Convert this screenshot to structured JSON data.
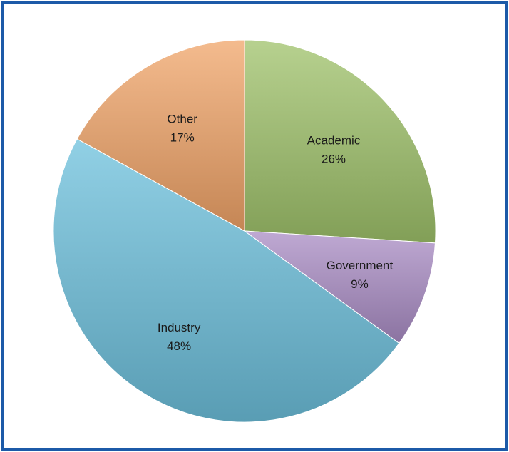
{
  "chart_data": {
    "type": "pie",
    "slices": [
      {
        "label": "Academic",
        "value": 26,
        "value_label": "26%",
        "color": "#9fc26a"
      },
      {
        "label": "Government",
        "value": 9,
        "value_label": "9%",
        "color": "#a98cc4"
      },
      {
        "label": "Industry",
        "value": 48,
        "value_label": "48%",
        "color": "#6cc0dc"
      },
      {
        "label": "Other",
        "value": 17,
        "value_label": "17%",
        "color": "#f0a468"
      }
    ],
    "start_angle_deg": 0,
    "direction": "clockwise",
    "title": "",
    "legend": "none"
  },
  "frame": {
    "border_color": "#1c5aa8"
  }
}
